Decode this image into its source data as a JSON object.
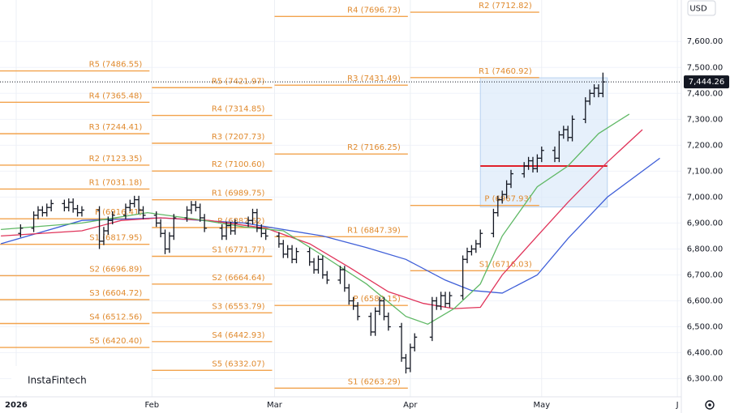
{
  "chart_data": {
    "type": "ohlc",
    "currency": "USD",
    "logo": "InstaFintech",
    "xlim": [
      -2.7,
      152.9
    ],
    "ylim": [
      6230,
      7760
    ],
    "xticks": [
      {
        "value": 1,
        "label": "2026"
      },
      {
        "value": 32,
        "label": "Feb"
      },
      {
        "value": 60,
        "label": "Mar"
      },
      {
        "value": 91,
        "label": "Apr"
      },
      {
        "value": 121,
        "label": "May"
      },
      {
        "value": 152,
        "label": "J"
      }
    ],
    "yticks": [
      {
        "value": 6300,
        "label": "6,300.00"
      },
      {
        "value": 6400,
        "label": "6,400.00"
      },
      {
        "value": 6500,
        "label": "6,500.00"
      },
      {
        "value": 6600,
        "label": "6,600.00"
      },
      {
        "value": 6700,
        "label": "6,700.00"
      },
      {
        "value": 6800,
        "label": "6,800.00"
      },
      {
        "value": 6900,
        "label": "6,900.00"
      },
      {
        "value": 7000,
        "label": "7,000.00"
      },
      {
        "value": 7100,
        "label": "7,100.00"
      },
      {
        "value": 7200,
        "label": "7,200.00"
      },
      {
        "value": 7300,
        "label": "7,300.00"
      },
      {
        "value": 7400,
        "label": "7,400.00"
      },
      {
        "value": 7500,
        "label": "7,500.00"
      },
      {
        "value": 7600,
        "label": "7,600.00"
      }
    ],
    "grid": true,
    "last_price": {
      "value": 7444.26,
      "label": "7,444.26"
    },
    "bars": {
      "color": "#131722",
      "x": [
        2,
        5,
        6,
        7,
        8,
        9,
        12,
        13,
        14,
        15,
        16,
        20,
        21,
        22,
        23,
        26,
        27,
        28,
        29,
        30,
        33,
        34,
        35,
        36,
        37,
        40,
        41,
        42,
        43,
        44,
        48,
        49,
        50,
        51,
        54,
        55,
        56,
        57,
        58,
        61,
        62,
        63,
        64,
        65,
        68,
        69,
        70,
        71,
        72,
        75,
        76,
        77,
        78,
        79,
        82,
        83,
        84,
        85,
        86,
        89,
        90,
        91,
        92,
        96,
        97,
        98,
        99,
        100,
        103,
        104,
        105,
        106,
        107,
        110,
        111,
        112,
        113,
        114,
        117,
        118,
        119,
        120,
        121,
        124,
        125,
        126,
        127,
        128,
        131,
        132,
        133,
        134,
        135
      ],
      "open": [
        6860,
        6880,
        6930,
        6950,
        6940,
        6960,
        6975,
        6960,
        6980,
        6955,
        6940,
        6950,
        6830,
        6870,
        6910,
        6930,
        6960,
        6975,
        6990,
        6950,
        6930,
        6900,
        6860,
        6800,
        6850,
        6920,
        6950,
        6970,
        6960,
        6920,
        6880,
        6850,
        6890,
        6870,
        6900,
        6910,
        6940,
        6880,
        6860,
        6850,
        6820,
        6780,
        6800,
        6760,
        6790,
        6750,
        6720,
        6760,
        6700,
        6680,
        6720,
        6650,
        6600,
        6580,
        6540,
        6480,
        6560,
        6600,
        6540,
        6500,
        6380,
        6340,
        6420,
        6460,
        6600,
        6580,
        6620,
        6590,
        6620,
        6760,
        6790,
        6800,
        6820,
        6860,
        6940,
        6990,
        7010,
        7050,
        7090,
        7120,
        7140,
        7110,
        7150,
        7180,
        7150,
        7240,
        7260,
        7230,
        7300,
        7370,
        7400,
        7420,
        7400
      ],
      "high": [
        6895,
        6945,
        6965,
        6965,
        6975,
        6990,
        6990,
        6995,
        6995,
        6970,
        6965,
        6965,
        6885,
        6925,
        6945,
        6975,
        6990,
        7005,
        7005,
        6965,
        6945,
        6915,
        6875,
        6865,
        6935,
        6965,
        6985,
        6985,
        6975,
        6935,
        6895,
        6905,
        6905,
        6915,
        6925,
        6955,
        6955,
        6895,
        6875,
        6865,
        6835,
        6815,
        6815,
        6805,
        6805,
        6765,
        6775,
        6775,
        6715,
        6735,
        6735,
        6665,
        6615,
        6595,
        6555,
        6575,
        6615,
        6615,
        6555,
        6515,
        6395,
        6435,
        6475,
        6615,
        6615,
        6635,
        6635,
        6635,
        6775,
        6805,
        6815,
        6835,
        6875,
        6955,
        7005,
        7025,
        7065,
        7105,
        7135,
        7155,
        7155,
        7165,
        7195,
        7195,
        7255,
        7275,
        7275,
        7315,
        7385,
        7415,
        7435,
        7435,
        7480
      ],
      "low": [
        6845,
        6865,
        6915,
        6925,
        6925,
        6945,
        6945,
        6945,
        6940,
        6925,
        6925,
        6800,
        6815,
        6855,
        6895,
        6915,
        6945,
        6960,
        6935,
        6915,
        6885,
        6845,
        6780,
        6785,
        6835,
        6905,
        6935,
        6945,
        6905,
        6865,
        6835,
        6835,
        6855,
        6855,
        6885,
        6895,
        6865,
        6845,
        6835,
        6805,
        6765,
        6765,
        6745,
        6745,
        6735,
        6705,
        6705,
        6685,
        6665,
        6665,
        6635,
        6585,
        6565,
        6525,
        6465,
        6465,
        6545,
        6525,
        6485,
        6365,
        6320,
        6325,
        6405,
        6445,
        6565,
        6565,
        6575,
        6575,
        6605,
        6745,
        6775,
        6785,
        6805,
        6845,
        6925,
        6975,
        6995,
        7035,
        7075,
        7105,
        7095,
        7095,
        7135,
        7135,
        7135,
        7225,
        7215,
        7215,
        7285,
        7355,
        7385,
        7385,
        7385
      ],
      "close": [
        6880,
        6930,
        6950,
        6940,
        6960,
        6975,
        6960,
        6980,
        6955,
        6940,
        6950,
        6830,
        6870,
        6910,
        6930,
        6960,
        6975,
        6990,
        6950,
        6930,
        6900,
        6860,
        6800,
        6850,
        6920,
        6950,
        6970,
        6960,
        6920,
        6880,
        6850,
        6890,
        6870,
        6900,
        6910,
        6940,
        6880,
        6860,
        6850,
        6820,
        6780,
        6800,
        6760,
        6790,
        6750,
        6720,
        6760,
        6700,
        6680,
        6720,
        6650,
        6600,
        6580,
        6540,
        6480,
        6560,
        6600,
        6540,
        6500,
        6380,
        6340,
        6420,
        6460,
        6600,
        6580,
        6620,
        6590,
        6620,
        6760,
        6790,
        6800,
        6820,
        6860,
        6940,
        6990,
        7010,
        7050,
        7090,
        7120,
        7140,
        7110,
        7150,
        7180,
        7150,
        7240,
        7260,
        7230,
        7300,
        7370,
        7400,
        7420,
        7400,
        7444.26
      ]
    },
    "series": [
      {
        "color": "#3f5fd8",
        "x": [
          -2.5,
          16,
          34,
          53,
          71,
          81,
          90,
          99,
          105,
          112,
          120,
          127,
          136,
          148
        ],
        "values": [
          6820,
          6910,
          6920,
          6900,
          6850,
          6805,
          6760,
          6680,
          6640,
          6630,
          6700,
          6840,
          7000,
          7150
        ]
      },
      {
        "color": "#e0345a",
        "x": [
          -2.5,
          16,
          25,
          34,
          45,
          58,
          68,
          77,
          86,
          94,
          101,
          107,
          112,
          120,
          127,
          136,
          144
        ],
        "values": [
          6850,
          6870,
          6910,
          6920,
          6910,
          6880,
          6820,
          6730,
          6635,
          6590,
          6570,
          6575,
          6700,
          6850,
          6980,
          7135,
          7260
        ]
      },
      {
        "color": "#5fb865",
        "x": [
          -2.5,
          16,
          31,
          42,
          53,
          62,
          71,
          81,
          90,
          95,
          101,
          107,
          112,
          120,
          127,
          134,
          141
        ],
        "values": [
          6875,
          6900,
          6940,
          6915,
          6885,
          6870,
          6775,
          6665,
          6540,
          6510,
          6570,
          6665,
          6850,
          7040,
          7120,
          7245,
          7320
        ]
      }
    ],
    "value_area": {
      "x": [
        107,
        136
      ],
      "values": [
        6962,
        7460
      ],
      "color": "#dbeafa"
    },
    "poc": {
      "value": 7120,
      "color": "#e0202a"
    },
    "pivot_color": "#f2a34d",
    "pivots": [
      {
        "end": 32,
        "levels": [
          {
            "label": "R5 (7486.55)",
            "value": 7486.55
          },
          {
            "label": "R4 (7365.48)",
            "value": 7365.48
          },
          {
            "label": "R3 (7244.41)",
            "value": 7244.41
          },
          {
            "label": "R2 (7123.35)",
            "value": 7123.35
          },
          {
            "label": "R1 (7031.18)",
            "value": 7031.18
          },
          {
            "label": "P (6916.41)",
            "value": 6916.41
          },
          {
            "label": "S1 (6817.95)",
            "value": 6817.95
          },
          {
            "label": "S2 (6696.89)",
            "value": 6696.89
          },
          {
            "label": "S3 (6604.72)",
            "value": 6604.72
          },
          {
            "label": "S4 (6512.56)",
            "value": 6512.56
          },
          {
            "label": "S5 (6420.40)",
            "value": 6420.4
          }
        ]
      },
      {
        "end": 60,
        "levels": [
          {
            "label": "R5 (7421.97)",
            "value": 7421.97
          },
          {
            "label": "R4 (7314.85)",
            "value": 7314.85
          },
          {
            "label": "R3 (7207.73)",
            "value": 7207.73
          },
          {
            "label": "R2 (7100.60)",
            "value": 7100.6
          },
          {
            "label": "R1 (6989.75)",
            "value": 6989.75
          },
          {
            "label": "P (6882.62)",
            "value": 6882.62
          },
          {
            "label": "S1 (6771.77)",
            "value": 6771.77
          },
          {
            "label": "S2 (6664.64)",
            "value": 6664.64
          },
          {
            "label": "S3 (6553.79)",
            "value": 6553.79
          },
          {
            "label": "S4 (6442.93)",
            "value": 6442.93
          },
          {
            "label": "S5 (6332.07)",
            "value": 6332.07
          }
        ]
      },
      {
        "end": 91,
        "levels": [
          {
            "label": "R4 (7696.73)",
            "value": 7696.73
          },
          {
            "label": "R3 (7431.49)",
            "value": 7431.49
          },
          {
            "label": "R2 (7166.25)",
            "value": 7166.25
          },
          {
            "label": "R1 (6847.39)",
            "value": 6847.39
          },
          {
            "label": "P (6582.15)",
            "value": 6582.15
          },
          {
            "label": "S1 (6263.29)",
            "value": 6263.29
          }
        ]
      },
      {
        "end": 121,
        "levels": [
          {
            "label": "R2 (7712.82)",
            "value": 7712.82
          },
          {
            "label": "R1 (7460.92)",
            "value": 7460.92
          },
          {
            "label": "P (6967.93)",
            "value": 6967.93
          },
          {
            "label": "S1 (6716.03)",
            "value": 6716.03
          }
        ]
      }
    ]
  }
}
